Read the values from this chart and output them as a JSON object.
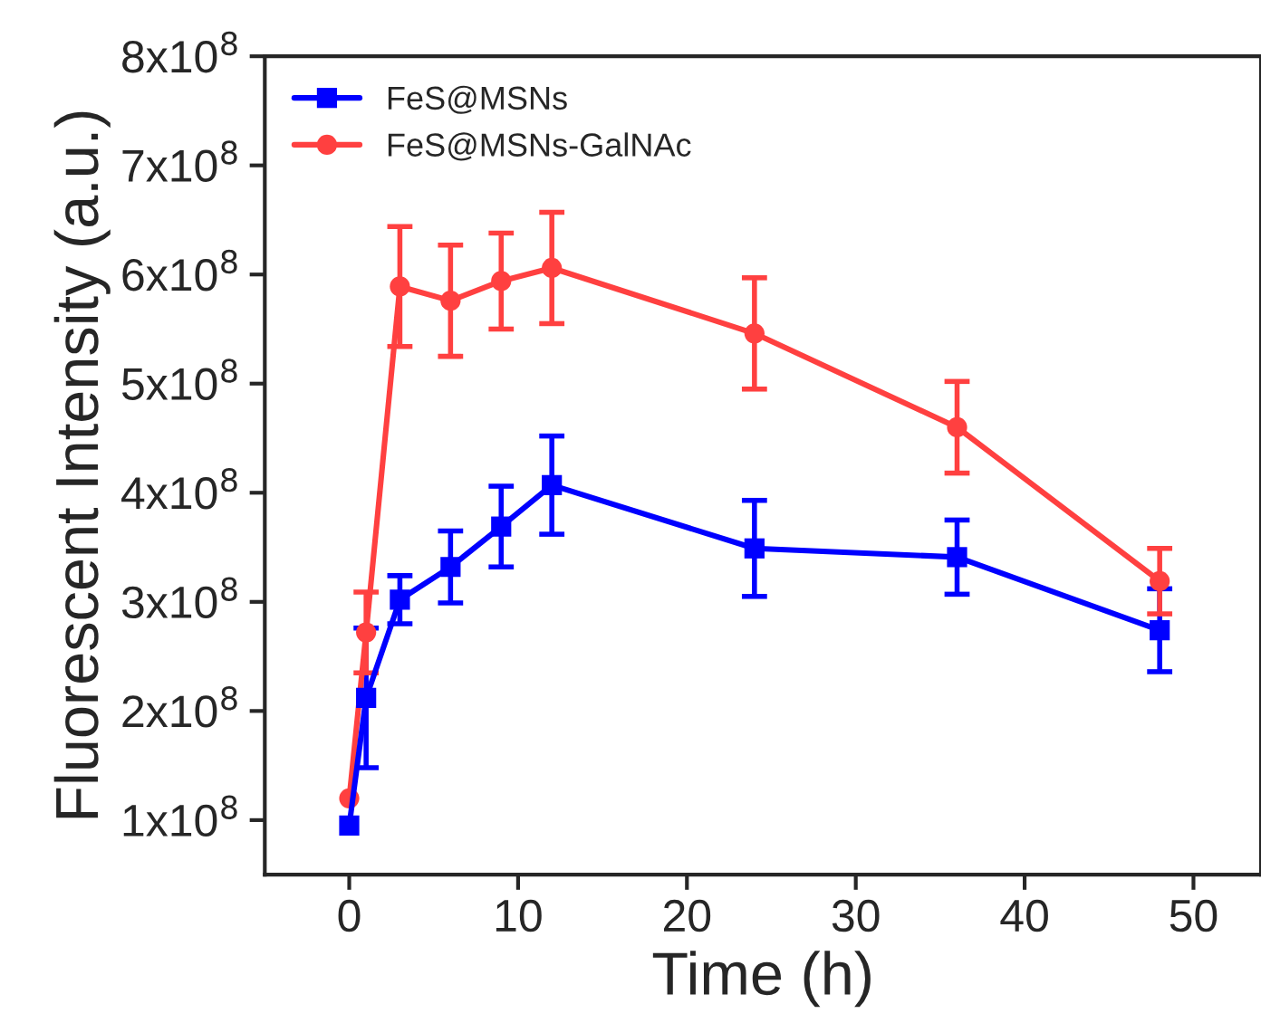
{
  "chart_data": {
    "type": "line",
    "xlabel": "Time (h)",
    "ylabel": "Fluorescent Intensity (a.u.)",
    "x": [
      0,
      1,
      3,
      6,
      9,
      12,
      24,
      36,
      48
    ],
    "series": [
      {
        "name": "FeS@MSNs",
        "color": "#0000ff",
        "marker": "square",
        "values": [
          95000000,
          212000000,
          302000000,
          332000000,
          369000000,
          407000000,
          349000000,
          341000000,
          274000000
        ],
        "errors": [
          null,
          64000000,
          22000000,
          33000000,
          37000000,
          45000000,
          44000000,
          34000000,
          38000000
        ]
      },
      {
        "name": "FeS@MSNs-GalNAc",
        "color": "#ff4040",
        "marker": "circle",
        "values": [
          120000000,
          272000000,
          589000000,
          576000000,
          594000000,
          606000000,
          546000000,
          460000000,
          319000000
        ],
        "errors": [
          null,
          37000000,
          55000000,
          51000000,
          44000000,
          51000000,
          51000000,
          42000000,
          30000000
        ]
      }
    ],
    "xlim": [
      -5,
      54
    ],
    "xticks": [
      0,
      10,
      20,
      30,
      40,
      50
    ],
    "ylim": [
      50000000,
      800000000
    ],
    "yticks": [
      {
        "value": 100000000,
        "label": "1x10$^{8}$"
      },
      {
        "value": 200000000,
        "label": "2x10$^{8}$"
      },
      {
        "value": 300000000,
        "label": "3x10$^{8}$"
      },
      {
        "value": 400000000,
        "label": "4x10$^{8}$"
      },
      {
        "value": 500000000,
        "label": "5x10$^{8}$"
      },
      {
        "value": 600000000,
        "label": "6x10$^{8}$"
      },
      {
        "value": 700000000,
        "label": "7x10$^{8}$"
      },
      {
        "value": 800000000,
        "label": "8x10$^{8}$"
      }
    ],
    "grid": false,
    "legend": "top left",
    "line_style": "solid"
  }
}
